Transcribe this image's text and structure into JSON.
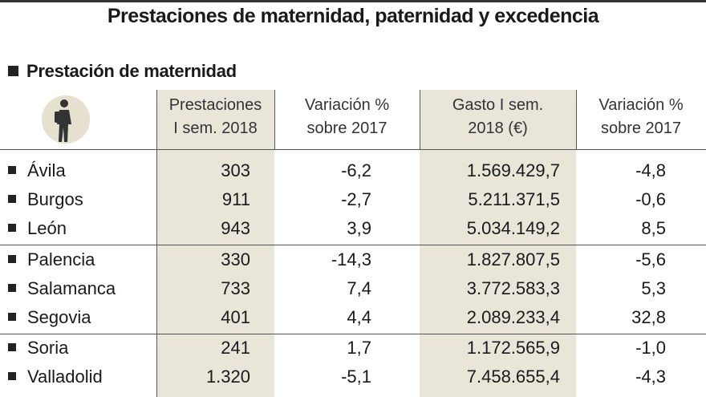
{
  "title": "Prestaciones de maternidad, paternidad y excedencia",
  "section": "Prestación de maternidad",
  "table": {
    "headers": [
      [
        "Prestaciones",
        "I sem. 2018"
      ],
      [
        "Variación %",
        "sobre 2017"
      ],
      [
        "Gasto I sem.",
        "2018 (€)"
      ],
      [
        "Variación %",
        "sobre 2017"
      ]
    ],
    "rows": [
      [
        "Ávila",
        "303",
        "-6,2",
        "1.569.429,7",
        "-4,8"
      ],
      [
        "Burgos",
        "911",
        "-2,7",
        "5.211.371,5",
        "-0,6"
      ],
      [
        "León",
        "943",
        "3,9",
        "5.034.149,2",
        "8,5"
      ],
      [
        "Palencia",
        "330",
        "-14,3",
        "1.827.807,5",
        "-5,6"
      ],
      [
        "Salamanca",
        "733",
        "7,4",
        "3.772.583,3",
        "5,3"
      ],
      [
        "Segovia",
        "401",
        "4,4",
        "2.089.233,4",
        "32,8"
      ],
      [
        "Soria",
        "241",
        "1,7",
        "1.172.565,9",
        "-1,0"
      ],
      [
        "Valladolid",
        "1.320",
        "-5,1",
        "7.458.655,4",
        "-4,3"
      ]
    ]
  }
}
